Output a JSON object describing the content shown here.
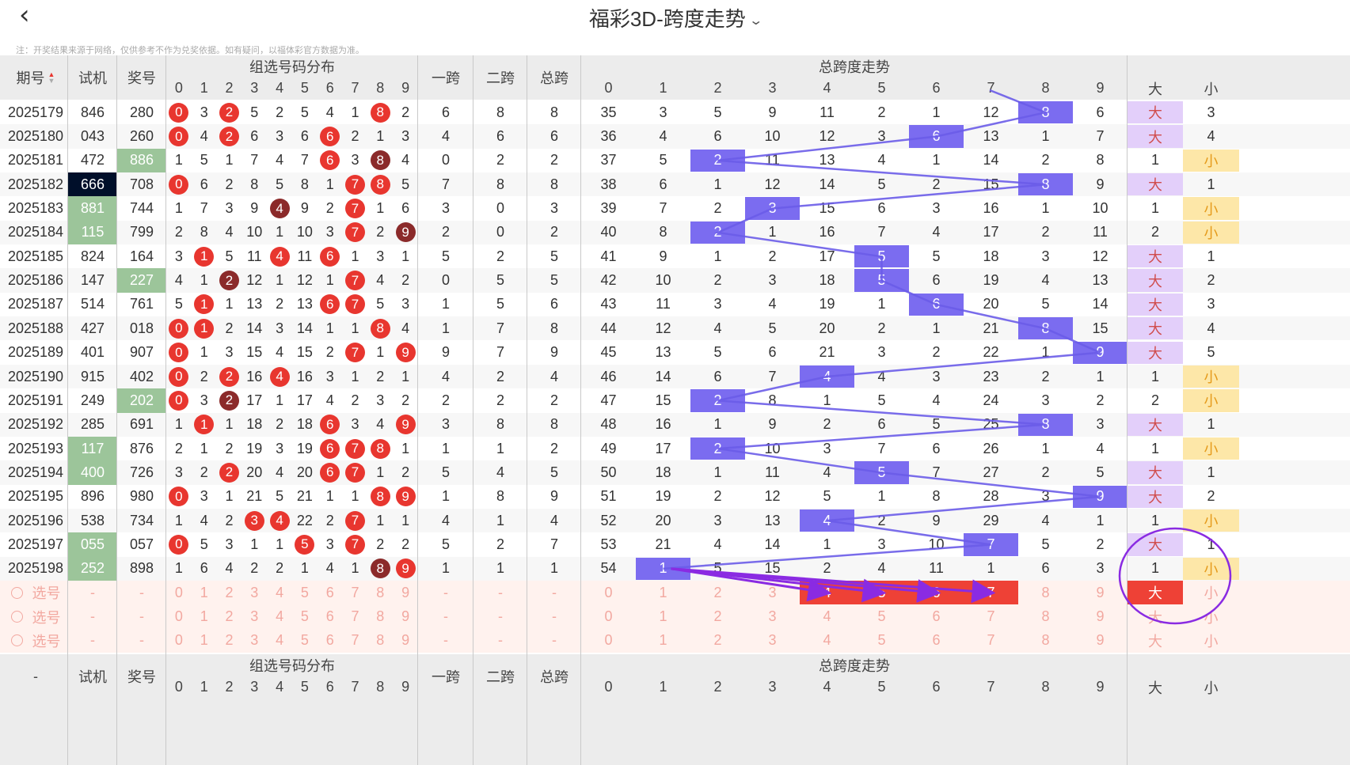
{
  "header": {
    "title": "福彩3D-跨度走势",
    "notice": "注：开奖结果来源于网络，仅供参考不作为兑奖依据。如有疑问，以福体彩官方数据为准。"
  },
  "columns": {
    "period": "期号",
    "trial": "试机",
    "prize": "奖号",
    "dist": "组选号码分布",
    "span1": "一跨",
    "span2": "二跨",
    "total": "总跨",
    "trend": "总跨度走势",
    "big": "大",
    "small": "小",
    "digits": [
      "0",
      "1",
      "2",
      "3",
      "4",
      "5",
      "6",
      "7",
      "8",
      "9"
    ]
  },
  "colors": {
    "hit": "#e8362f",
    "hit_repeat": "#8b2a2a",
    "span_cell": "#7b6cf0",
    "big_bg": "#e3cffa",
    "small_bg": "#fde7a8",
    "trial_green": "#9cc59a",
    "trial_black": "#000f2a",
    "select_bg": "#fff2ee",
    "select_hit": "#ee4136",
    "annotation": "#8a2be2"
  },
  "rows": [
    {
      "period": "2025179",
      "trial": "846",
      "trial_style": "",
      "prize": "280",
      "prize_style": "",
      "dist": [
        "0",
        "3",
        "2",
        "5",
        "2",
        "5",
        "4",
        "1",
        "8",
        "2"
      ],
      "dist_hit": [
        1,
        0,
        1,
        0,
        0,
        0,
        0,
        0,
        1,
        0
      ],
      "span1": "6",
      "span2": "8",
      "total": "8",
      "trend": [
        "35",
        "3",
        "5",
        "9",
        "11",
        "2",
        "1",
        "12",
        "8",
        "6"
      ],
      "bs": [
        "大",
        "3"
      ],
      "bs_hit": "big"
    },
    {
      "period": "2025180",
      "trial": "043",
      "trial_style": "",
      "prize": "260",
      "prize_style": "",
      "dist": [
        "0",
        "4",
        "2",
        "6",
        "3",
        "6",
        "6",
        "2",
        "1",
        "3"
      ],
      "dist_hit": [
        1,
        0,
        1,
        0,
        0,
        0,
        1,
        0,
        0,
        0
      ],
      "span1": "4",
      "span2": "6",
      "total": "6",
      "trend": [
        "36",
        "4",
        "6",
        "10",
        "12",
        "3",
        "6",
        "13",
        "1",
        "7"
      ],
      "bs": [
        "大",
        "4"
      ],
      "bs_hit": "big"
    },
    {
      "period": "2025181",
      "trial": "472",
      "trial_style": "",
      "prize": "886",
      "prize_style": "green",
      "dist": [
        "1",
        "5",
        "1",
        "7",
        "4",
        "7",
        "6",
        "3",
        "8",
        "4"
      ],
      "dist_hit": [
        0,
        0,
        0,
        0,
        0,
        0,
        1,
        0,
        2,
        0
      ],
      "span1": "0",
      "span2": "2",
      "total": "2",
      "trend": [
        "37",
        "5",
        "2",
        "11",
        "13",
        "4",
        "1",
        "14",
        "2",
        "8"
      ],
      "bs": [
        "1",
        "小"
      ],
      "bs_hit": "small"
    },
    {
      "period": "2025182",
      "trial": "666",
      "trial_style": "black",
      "prize": "708",
      "prize_style": "",
      "dist": [
        "0",
        "6",
        "2",
        "8",
        "5",
        "8",
        "1",
        "7",
        "8",
        "5"
      ],
      "dist_hit": [
        1,
        0,
        0,
        0,
        0,
        0,
        0,
        1,
        1,
        0
      ],
      "span1": "7",
      "span2": "8",
      "total": "8",
      "trend": [
        "38",
        "6",
        "1",
        "12",
        "14",
        "5",
        "2",
        "15",
        "8",
        "9"
      ],
      "bs": [
        "大",
        "1"
      ],
      "bs_hit": "big"
    },
    {
      "period": "2025183",
      "trial": "881",
      "trial_style": "green",
      "prize": "744",
      "prize_style": "",
      "dist": [
        "1",
        "7",
        "3",
        "9",
        "4",
        "9",
        "2",
        "7",
        "1",
        "6"
      ],
      "dist_hit": [
        0,
        0,
        0,
        0,
        2,
        0,
        0,
        1,
        0,
        0
      ],
      "span1": "3",
      "span2": "0",
      "total": "3",
      "trend": [
        "39",
        "7",
        "2",
        "3",
        "15",
        "6",
        "3",
        "16",
        "1",
        "10"
      ],
      "bs": [
        "1",
        "小"
      ],
      "bs_hit": "small"
    },
    {
      "period": "2025184",
      "trial": "115",
      "trial_style": "green",
      "prize": "799",
      "prize_style": "",
      "dist": [
        "2",
        "8",
        "4",
        "10",
        "1",
        "10",
        "3",
        "7",
        "2",
        "9"
      ],
      "dist_hit": [
        0,
        0,
        0,
        0,
        0,
        0,
        0,
        1,
        0,
        2
      ],
      "span1": "2",
      "span2": "0",
      "total": "2",
      "trend": [
        "40",
        "8",
        "2",
        "1",
        "16",
        "7",
        "4",
        "17",
        "2",
        "11"
      ],
      "bs": [
        "2",
        "小"
      ],
      "bs_hit": "small"
    },
    {
      "period": "2025185",
      "trial": "824",
      "trial_style": "",
      "prize": "164",
      "prize_style": "",
      "dist": [
        "3",
        "1",
        "5",
        "11",
        "4",
        "11",
        "6",
        "1",
        "3",
        "1"
      ],
      "dist_hit": [
        0,
        1,
        0,
        0,
        1,
        0,
        1,
        0,
        0,
        0
      ],
      "span1": "5",
      "span2": "2",
      "total": "5",
      "trend": [
        "41",
        "9",
        "1",
        "2",
        "17",
        "5",
        "5",
        "18",
        "3",
        "12"
      ],
      "bs": [
        "大",
        "1"
      ],
      "bs_hit": "big"
    },
    {
      "period": "2025186",
      "trial": "147",
      "trial_style": "",
      "prize": "227",
      "prize_style": "green",
      "dist": [
        "4",
        "1",
        "2",
        "12",
        "1",
        "12",
        "1",
        "7",
        "4",
        "2"
      ],
      "dist_hit": [
        0,
        0,
        2,
        0,
        0,
        0,
        0,
        1,
        0,
        0
      ],
      "span1": "0",
      "span2": "5",
      "total": "5",
      "trend": [
        "42",
        "10",
        "2",
        "3",
        "18",
        "5",
        "6",
        "19",
        "4",
        "13"
      ],
      "bs": [
        "大",
        "2"
      ],
      "bs_hit": "big"
    },
    {
      "period": "2025187",
      "trial": "514",
      "trial_style": "",
      "prize": "761",
      "prize_style": "",
      "dist": [
        "5",
        "1",
        "1",
        "13",
        "2",
        "13",
        "6",
        "7",
        "5",
        "3"
      ],
      "dist_hit": [
        0,
        1,
        0,
        0,
        0,
        0,
        1,
        1,
        0,
        0
      ],
      "span1": "1",
      "span2": "5",
      "total": "6",
      "trend": [
        "43",
        "11",
        "3",
        "4",
        "19",
        "1",
        "6",
        "20",
        "5",
        "14"
      ],
      "bs": [
        "大",
        "3"
      ],
      "bs_hit": "big"
    },
    {
      "period": "2025188",
      "trial": "427",
      "trial_style": "",
      "prize": "018",
      "prize_style": "",
      "dist": [
        "0",
        "1",
        "2",
        "14",
        "3",
        "14",
        "1",
        "1",
        "8",
        "4"
      ],
      "dist_hit": [
        1,
        1,
        0,
        0,
        0,
        0,
        0,
        0,
        1,
        0
      ],
      "span1": "1",
      "span2": "7",
      "total": "8",
      "trend": [
        "44",
        "12",
        "4",
        "5",
        "20",
        "2",
        "1",
        "21",
        "8",
        "15"
      ],
      "bs": [
        "大",
        "4"
      ],
      "bs_hit": "big"
    },
    {
      "period": "2025189",
      "trial": "401",
      "trial_style": "",
      "prize": "907",
      "prize_style": "",
      "dist": [
        "0",
        "1",
        "3",
        "15",
        "4",
        "15",
        "2",
        "7",
        "1",
        "9"
      ],
      "dist_hit": [
        1,
        0,
        0,
        0,
        0,
        0,
        0,
        1,
        0,
        1
      ],
      "span1": "9",
      "span2": "7",
      "total": "9",
      "trend": [
        "45",
        "13",
        "5",
        "6",
        "21",
        "3",
        "2",
        "22",
        "1",
        "9"
      ],
      "bs": [
        "大",
        "5"
      ],
      "bs_hit": "big"
    },
    {
      "period": "2025190",
      "trial": "915",
      "trial_style": "",
      "prize": "402",
      "prize_style": "",
      "dist": [
        "0",
        "2",
        "2",
        "16",
        "4",
        "16",
        "3",
        "1",
        "2",
        "1"
      ],
      "dist_hit": [
        1,
        0,
        1,
        0,
        1,
        0,
        0,
        0,
        0,
        0
      ],
      "span1": "4",
      "span2": "2",
      "total": "4",
      "trend": [
        "46",
        "14",
        "6",
        "7",
        "4",
        "4",
        "3",
        "23",
        "2",
        "1"
      ],
      "bs": [
        "1",
        "小"
      ],
      "bs_hit": "small"
    },
    {
      "period": "2025191",
      "trial": "249",
      "trial_style": "",
      "prize": "202",
      "prize_style": "green",
      "dist": [
        "0",
        "3",
        "2",
        "17",
        "1",
        "17",
        "4",
        "2",
        "3",
        "2"
      ],
      "dist_hit": [
        1,
        0,
        2,
        0,
        0,
        0,
        0,
        0,
        0,
        0
      ],
      "span1": "2",
      "span2": "2",
      "total": "2",
      "trend": [
        "47",
        "15",
        "2",
        "8",
        "1",
        "5",
        "4",
        "24",
        "3",
        "2"
      ],
      "bs": [
        "2",
        "小"
      ],
      "bs_hit": "small"
    },
    {
      "period": "2025192",
      "trial": "285",
      "trial_style": "",
      "prize": "691",
      "prize_style": "",
      "dist": [
        "1",
        "1",
        "1",
        "18",
        "2",
        "18",
        "6",
        "3",
        "4",
        "9"
      ],
      "dist_hit": [
        0,
        1,
        0,
        0,
        0,
        0,
        1,
        0,
        0,
        1
      ],
      "span1": "3",
      "span2": "8",
      "total": "8",
      "trend": [
        "48",
        "16",
        "1",
        "9",
        "2",
        "6",
        "5",
        "25",
        "8",
        "3"
      ],
      "bs": [
        "大",
        "1"
      ],
      "bs_hit": "big"
    },
    {
      "period": "2025193",
      "trial": "117",
      "trial_style": "green",
      "prize": "876",
      "prize_style": "",
      "dist": [
        "2",
        "1",
        "2",
        "19",
        "3",
        "19",
        "6",
        "7",
        "8",
        "1"
      ],
      "dist_hit": [
        0,
        0,
        0,
        0,
        0,
        0,
        1,
        1,
        1,
        0
      ],
      "span1": "1",
      "span2": "1",
      "total": "2",
      "trend": [
        "49",
        "17",
        "2",
        "10",
        "3",
        "7",
        "6",
        "26",
        "1",
        "4"
      ],
      "bs": [
        "1",
        "小"
      ],
      "bs_hit": "small"
    },
    {
      "period": "2025194",
      "trial": "400",
      "trial_style": "green",
      "prize": "726",
      "prize_style": "",
      "dist": [
        "3",
        "2",
        "2",
        "20",
        "4",
        "20",
        "6",
        "7",
        "1",
        "2"
      ],
      "dist_hit": [
        0,
        0,
        1,
        0,
        0,
        0,
        1,
        1,
        0,
        0
      ],
      "span1": "5",
      "span2": "4",
      "total": "5",
      "trend": [
        "50",
        "18",
        "1",
        "11",
        "4",
        "5",
        "7",
        "27",
        "2",
        "5"
      ],
      "bs": [
        "大",
        "1"
      ],
      "bs_hit": "big"
    },
    {
      "period": "2025195",
      "trial": "896",
      "trial_style": "",
      "prize": "980",
      "prize_style": "",
      "dist": [
        "0",
        "3",
        "1",
        "21",
        "5",
        "21",
        "1",
        "1",
        "8",
        "9"
      ],
      "dist_hit": [
        1,
        0,
        0,
        0,
        0,
        0,
        0,
        0,
        1,
        1
      ],
      "span1": "1",
      "span2": "8",
      "total": "9",
      "trend": [
        "51",
        "19",
        "2",
        "12",
        "5",
        "1",
        "8",
        "28",
        "3",
        "9"
      ],
      "bs": [
        "大",
        "2"
      ],
      "bs_hit": "big"
    },
    {
      "period": "2025196",
      "trial": "538",
      "trial_style": "",
      "prize": "734",
      "prize_style": "",
      "dist": [
        "1",
        "4",
        "2",
        "3",
        "4",
        "22",
        "2",
        "7",
        "1",
        "1"
      ],
      "dist_hit": [
        0,
        0,
        0,
        1,
        1,
        0,
        0,
        1,
        0,
        0
      ],
      "span1": "4",
      "span2": "1",
      "total": "4",
      "trend": [
        "52",
        "20",
        "3",
        "13",
        "4",
        "2",
        "9",
        "29",
        "4",
        "1"
      ],
      "bs": [
        "1",
        "小"
      ],
      "bs_hit": "small"
    },
    {
      "period": "2025197",
      "trial": "055",
      "trial_style": "green",
      "prize": "057",
      "prize_style": "",
      "dist": [
        "0",
        "5",
        "3",
        "1",
        "1",
        "5",
        "3",
        "7",
        "2",
        "2"
      ],
      "dist_hit": [
        1,
        0,
        0,
        0,
        0,
        1,
        0,
        1,
        0,
        0
      ],
      "span1": "5",
      "span2": "2",
      "total": "7",
      "trend": [
        "53",
        "21",
        "4",
        "14",
        "1",
        "3",
        "10",
        "7",
        "5",
        "2"
      ],
      "bs": [
        "大",
        "1"
      ],
      "bs_hit": "big"
    },
    {
      "period": "2025198",
      "trial": "252",
      "trial_style": "green",
      "prize": "898",
      "prize_style": "",
      "dist": [
        "1",
        "6",
        "4",
        "2",
        "2",
        "1",
        "4",
        "1",
        "8",
        "9"
      ],
      "dist_hit": [
        0,
        0,
        0,
        0,
        0,
        0,
        0,
        0,
        2,
        1
      ],
      "span1": "1",
      "span2": "1",
      "total": "1",
      "trend": [
        "54",
        "1",
        "5",
        "15",
        "2",
        "4",
        "11",
        "1",
        "6",
        "3"
      ],
      "bs": [
        "1",
        "小"
      ],
      "bs_hit": "small"
    }
  ],
  "select_rows": [
    {
      "label": "选号",
      "trial": "-",
      "prize": "-",
      "span1": "-",
      "span2": "-",
      "total": "-",
      "hl_trend": [
        4,
        5,
        6,
        7
      ],
      "hl_big": true
    },
    {
      "label": "选号",
      "trial": "-",
      "prize": "-",
      "span1": "-",
      "span2": "-",
      "total": "-",
      "hl_trend": [],
      "hl_big": false
    },
    {
      "label": "选号",
      "trial": "-",
      "prize": "-",
      "span1": "-",
      "span2": "-",
      "total": "-",
      "hl_trend": [],
      "hl_big": false
    }
  ],
  "footer": {
    "period": "-",
    "trial": "试机",
    "prize": "奖号",
    "dist": "组选号码分布",
    "span1": "一跨",
    "span2": "二跨",
    "total": "总跨",
    "trend": "总跨度走势"
  }
}
